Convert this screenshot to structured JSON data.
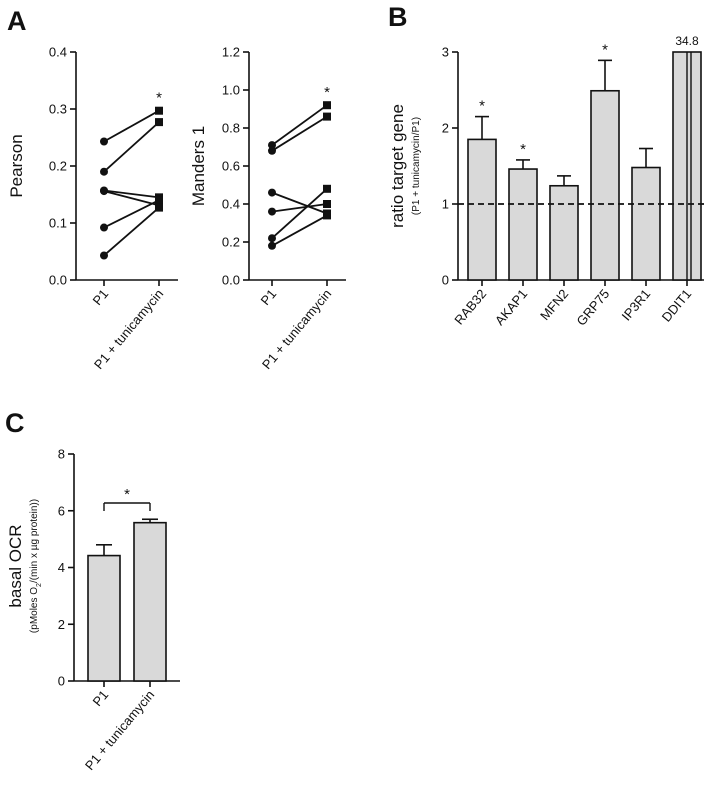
{
  "panel_labels": {
    "a": "A",
    "b": "B",
    "c": "C"
  },
  "colors": {
    "bar_fill": "#d9d9d9",
    "ink": "#111111"
  },
  "chart_data": [
    {
      "id": "A1",
      "type": "scatter",
      "ylabel": "Pearson",
      "ylim": [
        0,
        0.4
      ],
      "yticks": [
        "0.0",
        "0.1",
        "0.2",
        "0.3",
        "0.4"
      ],
      "categories": [
        "P1",
        "P1 + tunicamycin"
      ],
      "significance": "*",
      "pairs": [
        {
          "before": 0.243,
          "after": 0.297
        },
        {
          "before": 0.19,
          "after": 0.277
        },
        {
          "before": 0.157,
          "after": 0.145
        },
        {
          "before": 0.156,
          "after": 0.131
        },
        {
          "before": 0.092,
          "after": 0.14
        },
        {
          "before": 0.043,
          "after": 0.127
        }
      ]
    },
    {
      "id": "A2",
      "type": "scatter",
      "ylabel": "Manders 1",
      "ylim": [
        0,
        1.2
      ],
      "yticks": [
        "0.0",
        "0.2",
        "0.4",
        "0.6",
        "0.8",
        "1.0",
        "1.2"
      ],
      "categories": [
        "P1",
        "P1 + tunicamycin"
      ],
      "significance": "*",
      "pairs": [
        {
          "before": 0.71,
          "after": 0.92
        },
        {
          "before": 0.68,
          "after": 0.86
        },
        {
          "before": 0.46,
          "after": 0.35
        },
        {
          "before": 0.36,
          "after": 0.4
        },
        {
          "before": 0.22,
          "after": 0.48
        },
        {
          "before": 0.18,
          "after": 0.34
        }
      ]
    },
    {
      "id": "B",
      "type": "bar",
      "ylabel": "ratio target gene",
      "ylabel_sub": "(P1 + tunicamycin/P1)",
      "ylim": [
        0,
        3
      ],
      "yticks": [
        "0",
        "1",
        "2",
        "3"
      ],
      "reference_line": 1,
      "categories": [
        "RAB32",
        "AKAP1",
        "MFN2",
        "GRP75",
        "IP3R1",
        "DDIT1"
      ],
      "values": [
        1.85,
        1.46,
        1.24,
        2.49,
        1.48,
        34.8
      ],
      "errors": [
        0.3,
        0.12,
        0.13,
        0.4,
        0.25,
        0
      ],
      "significant": [
        "*",
        "*",
        "",
        "*",
        "",
        ""
      ],
      "value_labels": [
        "",
        "",
        "",
        "",
        "",
        "34.8"
      ]
    },
    {
      "id": "C",
      "type": "bar",
      "ylabel": "basal OCR",
      "ylabel_sub_before": "(pMoles O",
      "ylabel_sub_subscript": "2",
      "ylabel_sub_after": "/(min x µg protein))",
      "ylim": [
        0,
        8
      ],
      "yticks": [
        "0",
        "2",
        "4",
        "6",
        "8"
      ],
      "categories": [
        "P1",
        "P1 + tunicamycin"
      ],
      "values": [
        4.42,
        5.58
      ],
      "errors": [
        0.38,
        0.12
      ],
      "significance": "*"
    }
  ]
}
